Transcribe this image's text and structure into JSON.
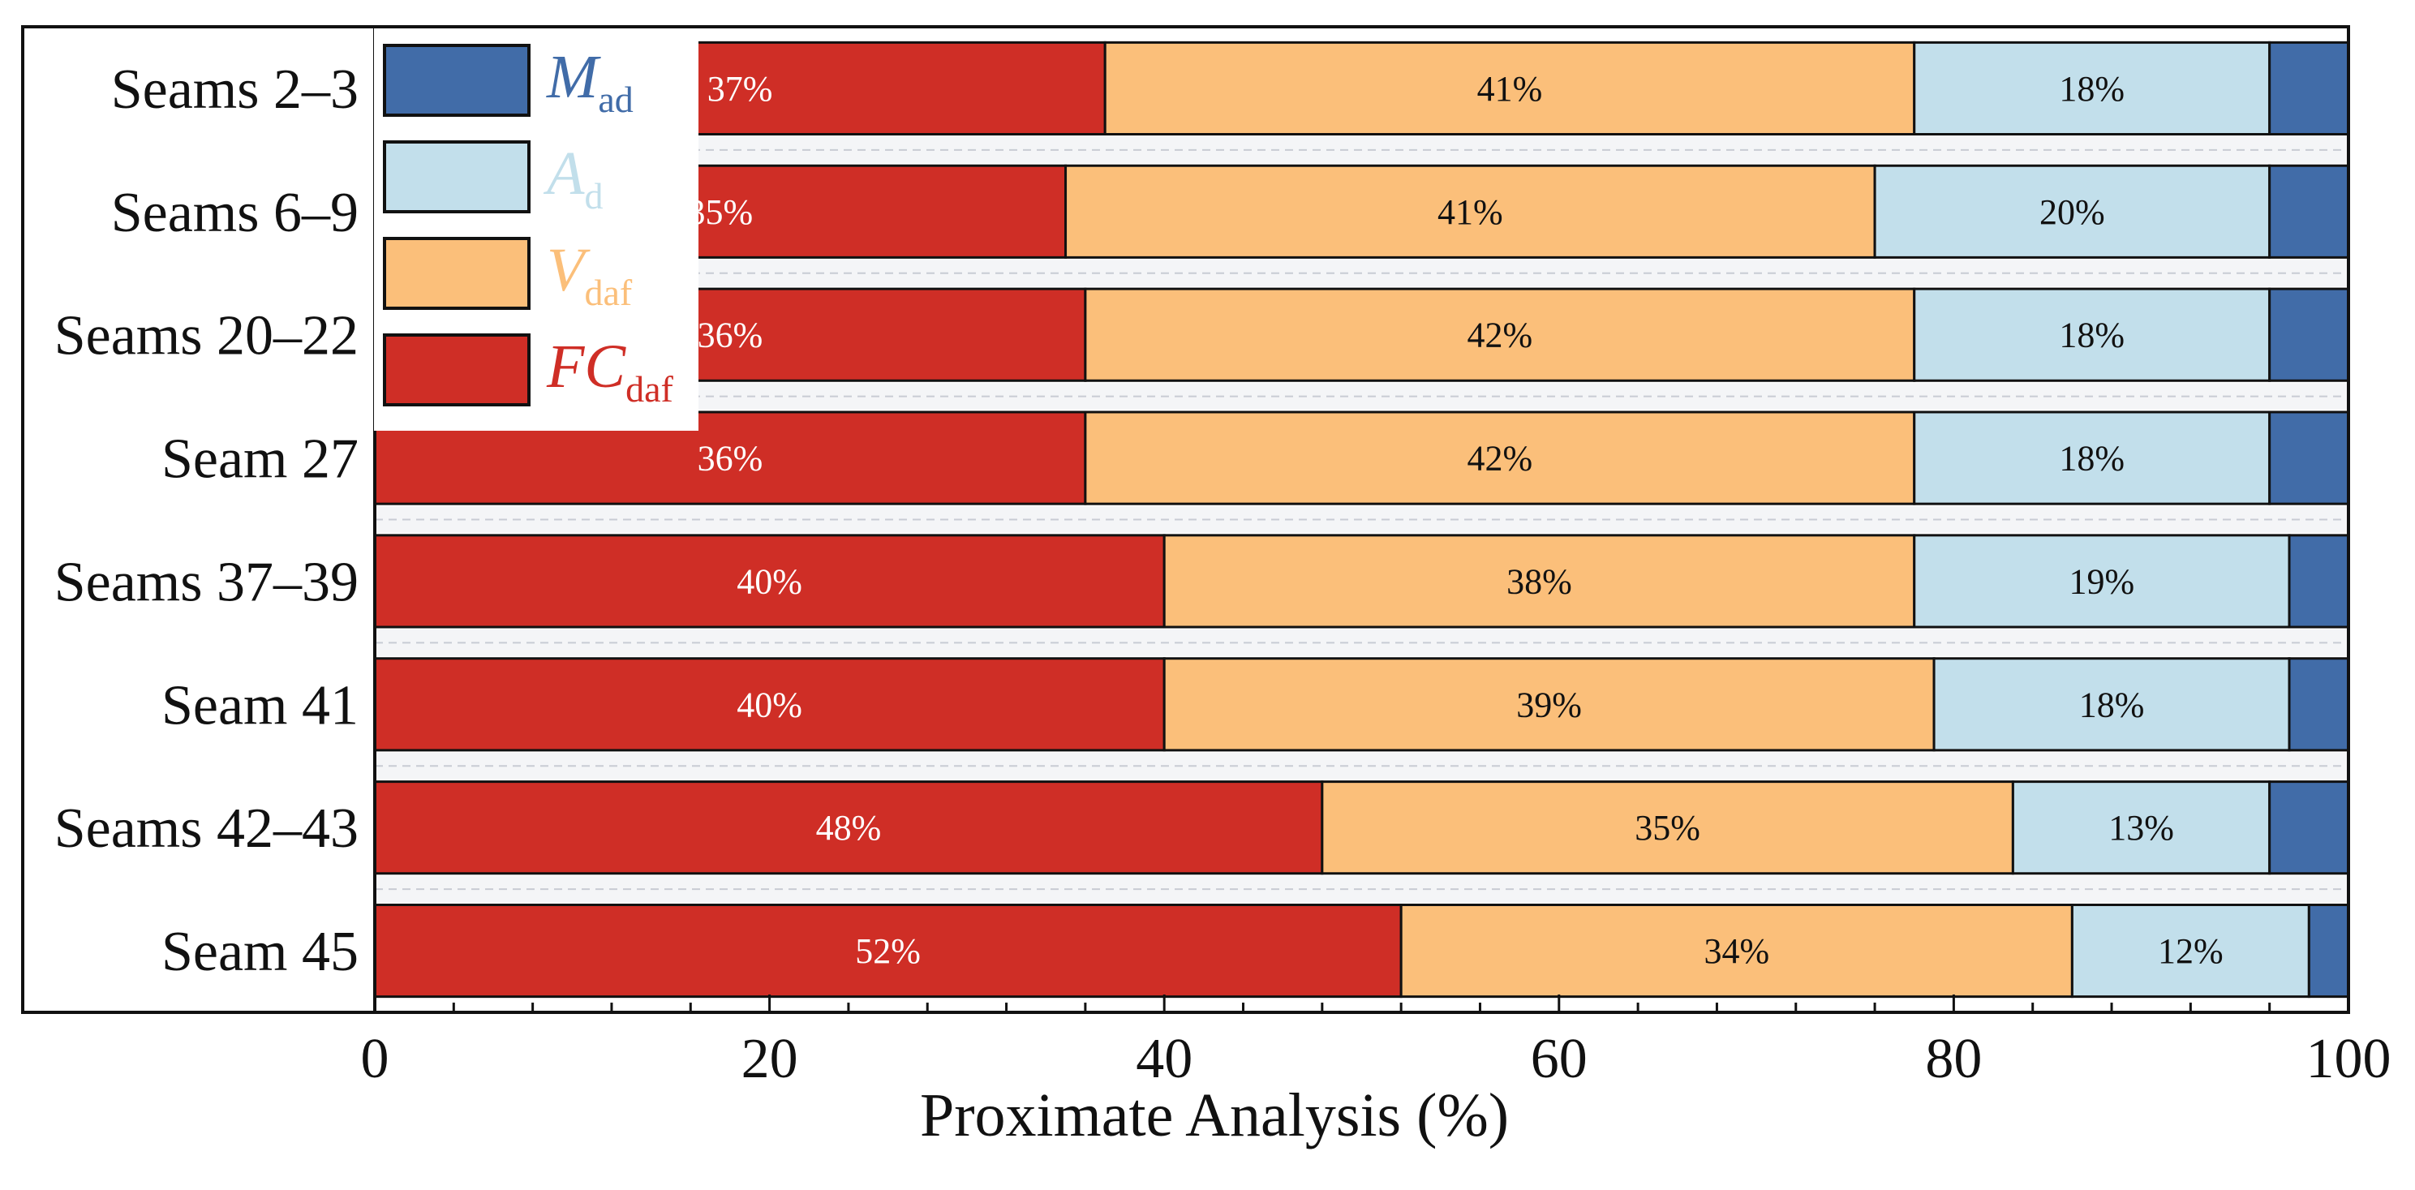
{
  "chart_data": {
    "type": "bar",
    "orientation": "horizontal",
    "stacked": true,
    "xlabel": "Proximate Analysis (%)",
    "ylabel": "",
    "xlim": [
      0,
      100
    ],
    "xticks": [
      0,
      20,
      40,
      60,
      80,
      100
    ],
    "grid": false,
    "legend_position": "top-left",
    "categories": [
      "Seams 2–3",
      "Seams 6–9",
      "Seams 20–22",
      "Seam 27",
      "Seams 37–39",
      "Seam 41",
      "Seams 42–43",
      "Seam 45"
    ],
    "series": [
      {
        "name": "FC",
        "subscript": "daf",
        "key": "fc",
        "color": "#cf2e26",
        "label_color": "#ffffff",
        "values": [
          37,
          35,
          36,
          36,
          40,
          40,
          48,
          52
        ],
        "labels": [
          "37%",
          "35%",
          "36%",
          "36%",
          "40%",
          "40%",
          "48%",
          "52%"
        ]
      },
      {
        "name": "V",
        "subscript": "daf",
        "key": "v",
        "color": "#fbbf7a",
        "label_color": "#111111",
        "values": [
          41,
          41,
          42,
          42,
          38,
          39,
          35,
          34
        ],
        "labels": [
          "41%",
          "41%",
          "42%",
          "42%",
          "38%",
          "39%",
          "35%",
          "34%"
        ]
      },
      {
        "name": "A",
        "subscript": "d",
        "key": "a",
        "color": "#c2dfeb",
        "label_color": "#111111",
        "values": [
          18,
          20,
          18,
          18,
          19,
          18,
          13,
          12
        ],
        "labels": [
          "18%",
          "20%",
          "18%",
          "18%",
          "19%",
          "18%",
          "13%",
          "12%"
        ]
      },
      {
        "name": "M",
        "subscript": "ad",
        "key": "m",
        "color": "#416ca8",
        "label_color": "#ffffff",
        "values": [
          4,
          4,
          4,
          3.5,
          3,
          3.2,
          3,
          2.6
        ],
        "labels": [
          "",
          "",
          "",
          "",
          "",
          "",
          "",
          ""
        ]
      }
    ],
    "legend_order": [
      "m",
      "a",
      "v",
      "fc"
    ]
  }
}
